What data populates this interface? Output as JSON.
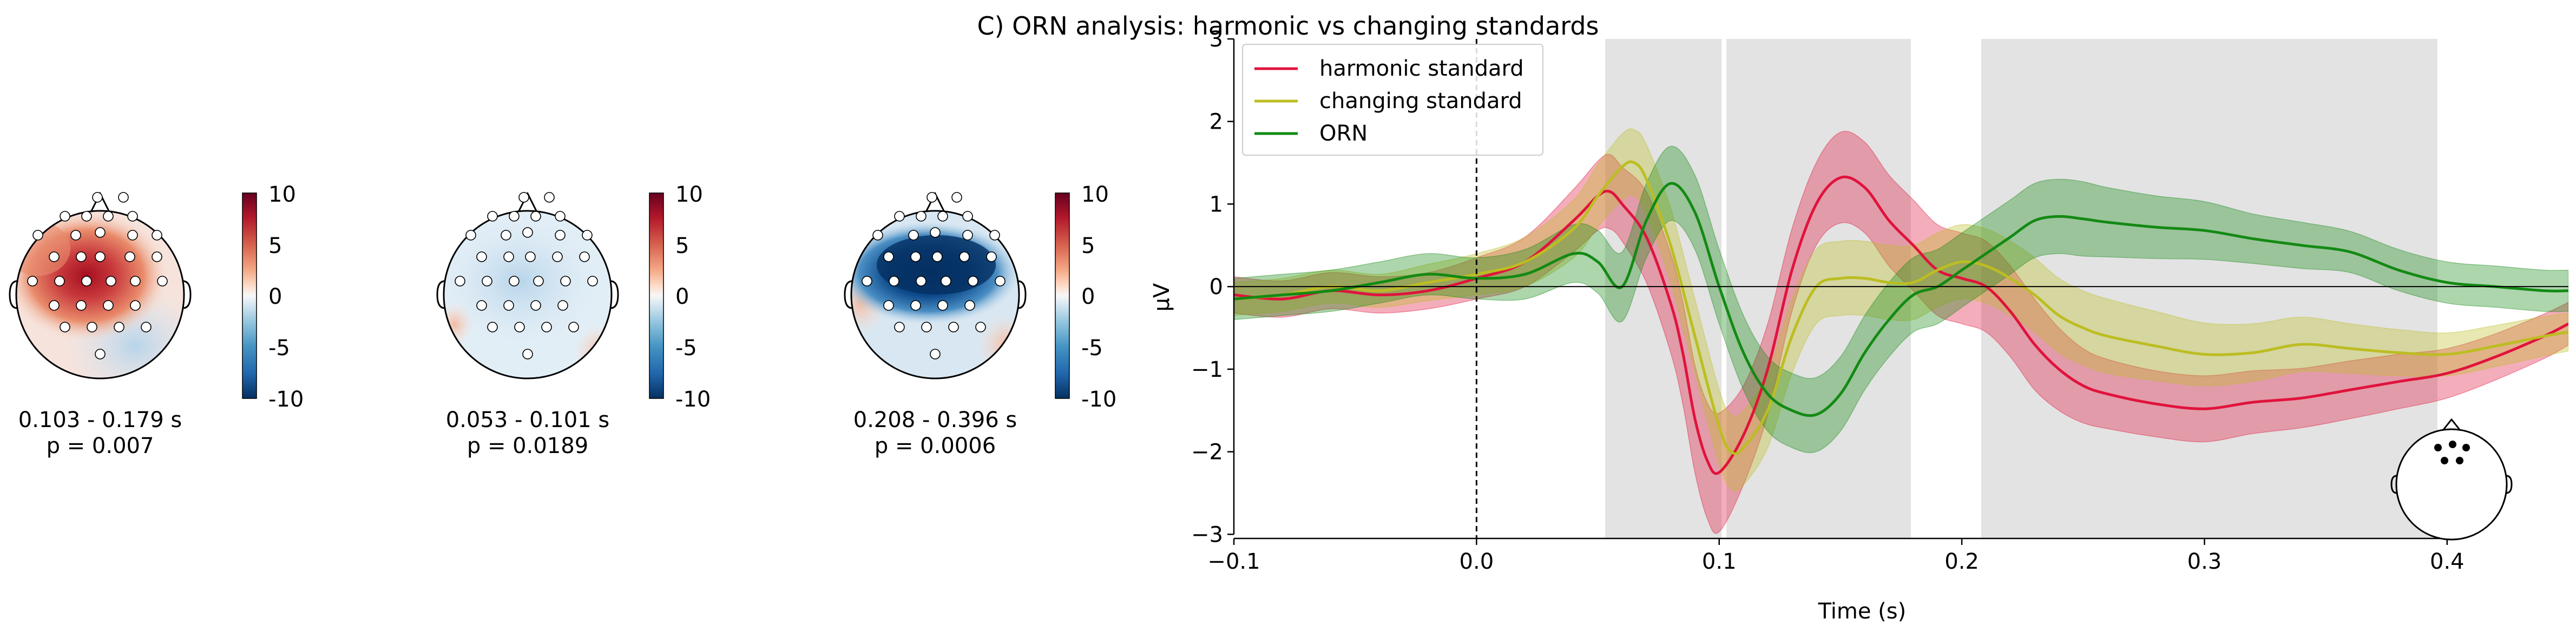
{
  "figure": {
    "title": "C) ORN analysis: harmonic vs changing standards"
  },
  "topomaps": [
    {
      "time_label": "0.103 - 0.179 s",
      "p_label": "p = 0.007"
    },
    {
      "time_label": "0.053 - 0.101 s",
      "p_label": "p = 0.0189"
    },
    {
      "time_label": "0.208 - 0.396 s",
      "p_label": "p = 0.0006"
    }
  ],
  "colorbar": {
    "ticks": [
      "10",
      "5",
      "0",
      "-5",
      "-10"
    ],
    "values": [
      10,
      5,
      0,
      -5,
      -10
    ],
    "colormap": "RdBu_r"
  },
  "chart_data": {
    "type": "line",
    "xlabel": "Time (s)",
    "ylabel": "µV",
    "xlim": [
      -0.1,
      0.45
    ],
    "ylim": [
      -3.05,
      3.0
    ],
    "xticks": [
      -0.1,
      0.0,
      0.1,
      0.2,
      0.3,
      0.4
    ],
    "xtick_labels": [
      "−0.1",
      "0.0",
      "0.1",
      "0.2",
      "0.3",
      "0.4"
    ],
    "yticks": [
      -3,
      -2,
      -1,
      0,
      1,
      2,
      3
    ],
    "ytick_labels": [
      "−3",
      "−2",
      "−1",
      "0",
      "1",
      "2",
      "3"
    ],
    "legend_position": "top-left",
    "grid": false,
    "significant_windows": [
      [
        0.053,
        0.101
      ],
      [
        0.103,
        0.179
      ],
      [
        0.208,
        0.396
      ]
    ],
    "stimulus_onset": 0.0,
    "series": [
      {
        "name": "harmonic standard",
        "color": "#e0133c",
        "x": [
          -0.1,
          -0.08,
          -0.06,
          -0.04,
          -0.02,
          0.0,
          0.02,
          0.04,
          0.05,
          0.055,
          0.06,
          0.07,
          0.08,
          0.085,
          0.09,
          0.095,
          0.1,
          0.11,
          0.12,
          0.13,
          0.14,
          0.15,
          0.16,
          0.17,
          0.18,
          0.19,
          0.2,
          0.21,
          0.22,
          0.23,
          0.24,
          0.25,
          0.26,
          0.28,
          0.3,
          0.32,
          0.34,
          0.36,
          0.38,
          0.4,
          0.42,
          0.44,
          0.45
        ],
        "y": [
          -0.1,
          -0.15,
          -0.05,
          -0.1,
          -0.05,
          0.1,
          0.3,
          0.8,
          1.1,
          1.15,
          1.0,
          0.6,
          -0.2,
          -0.8,
          -1.6,
          -2.1,
          -2.25,
          -1.8,
          -1.0,
          0.2,
          1.0,
          1.32,
          1.2,
          0.8,
          0.5,
          0.2,
          0.1,
          0.0,
          -0.3,
          -0.7,
          -1.0,
          -1.2,
          -1.3,
          -1.42,
          -1.48,
          -1.4,
          -1.35,
          -1.25,
          -1.15,
          -1.05,
          -0.85,
          -0.6,
          -0.45
        ],
        "ci": [
          0.22,
          0.22,
          0.22,
          0.22,
          0.22,
          0.25,
          0.3,
          0.38,
          0.42,
          0.45,
          0.45,
          0.55,
          0.6,
          0.62,
          0.65,
          0.7,
          0.72,
          0.6,
          0.55,
          0.5,
          0.5,
          0.55,
          0.55,
          0.55,
          0.55,
          0.55,
          0.55,
          0.55,
          0.55,
          0.55,
          0.5,
          0.45,
          0.42,
          0.4,
          0.4,
          0.38,
          0.36,
          0.35,
          0.33,
          0.3,
          0.28,
          0.27,
          0.26
        ]
      },
      {
        "name": "changing standard",
        "color": "#bcbd22",
        "x": [
          -0.1,
          -0.08,
          -0.06,
          -0.04,
          -0.02,
          0.0,
          0.02,
          0.04,
          0.05,
          0.06,
          0.065,
          0.07,
          0.08,
          0.09,
          0.1,
          0.105,
          0.11,
          0.12,
          0.13,
          0.14,
          0.15,
          0.16,
          0.17,
          0.18,
          0.19,
          0.2,
          0.21,
          0.22,
          0.23,
          0.24,
          0.25,
          0.26,
          0.28,
          0.3,
          0.32,
          0.34,
          0.36,
          0.38,
          0.4,
          0.42,
          0.44,
          0.45
        ],
        "y": [
          -0.15,
          -0.1,
          0.0,
          -0.05,
          0.05,
          0.15,
          0.3,
          0.7,
          1.1,
          1.45,
          1.5,
          1.3,
          0.5,
          -0.6,
          -1.7,
          -2.0,
          -1.95,
          -1.5,
          -0.6,
          0.0,
          0.1,
          0.1,
          0.05,
          0.05,
          0.2,
          0.3,
          0.25,
          0.1,
          -0.1,
          -0.35,
          -0.5,
          -0.6,
          -0.72,
          -0.82,
          -0.8,
          -0.7,
          -0.75,
          -0.8,
          -0.82,
          -0.72,
          -0.6,
          -0.55
        ],
        "ci": [
          0.2,
          0.2,
          0.2,
          0.2,
          0.22,
          0.25,
          0.3,
          0.35,
          0.38,
          0.4,
          0.4,
          0.42,
          0.45,
          0.45,
          0.45,
          0.45,
          0.45,
          0.45,
          0.45,
          0.45,
          0.45,
          0.45,
          0.45,
          0.45,
          0.45,
          0.45,
          0.45,
          0.45,
          0.45,
          0.45,
          0.45,
          0.45,
          0.42,
          0.38,
          0.35,
          0.33,
          0.3,
          0.28,
          0.26,
          0.25,
          0.24,
          0.23
        ]
      },
      {
        "name": "ORN",
        "color": "#138a13",
        "x": [
          -0.1,
          -0.08,
          -0.06,
          -0.04,
          -0.02,
          0.0,
          0.02,
          0.04,
          0.05,
          0.06,
          0.07,
          0.08,
          0.09,
          0.1,
          0.11,
          0.12,
          0.13,
          0.14,
          0.15,
          0.16,
          0.17,
          0.18,
          0.19,
          0.2,
          0.21,
          0.22,
          0.23,
          0.24,
          0.25,
          0.26,
          0.28,
          0.3,
          0.32,
          0.34,
          0.36,
          0.38,
          0.4,
          0.42,
          0.44,
          0.45
        ],
        "y": [
          -0.15,
          -0.1,
          -0.05,
          0.05,
          0.15,
          0.1,
          0.15,
          0.4,
          0.3,
          0.0,
          0.8,
          1.25,
          0.9,
          0.0,
          -0.8,
          -1.3,
          -1.5,
          -1.55,
          -1.3,
          -0.8,
          -0.4,
          -0.1,
          0.0,
          0.2,
          0.4,
          0.6,
          0.8,
          0.85,
          0.82,
          0.78,
          0.72,
          0.68,
          0.58,
          0.5,
          0.42,
          0.2,
          0.05,
          0.0,
          -0.05,
          -0.05
        ],
        "ci": [
          0.25,
          0.25,
          0.25,
          0.25,
          0.25,
          0.25,
          0.3,
          0.35,
          0.38,
          0.42,
          0.45,
          0.45,
          0.45,
          0.45,
          0.45,
          0.45,
          0.45,
          0.45,
          0.45,
          0.45,
          0.45,
          0.45,
          0.45,
          0.45,
          0.45,
          0.45,
          0.45,
          0.45,
          0.45,
          0.42,
          0.38,
          0.35,
          0.3,
          0.28,
          0.25,
          0.25,
          0.25,
          0.25,
          0.25,
          0.25
        ]
      }
    ]
  }
}
